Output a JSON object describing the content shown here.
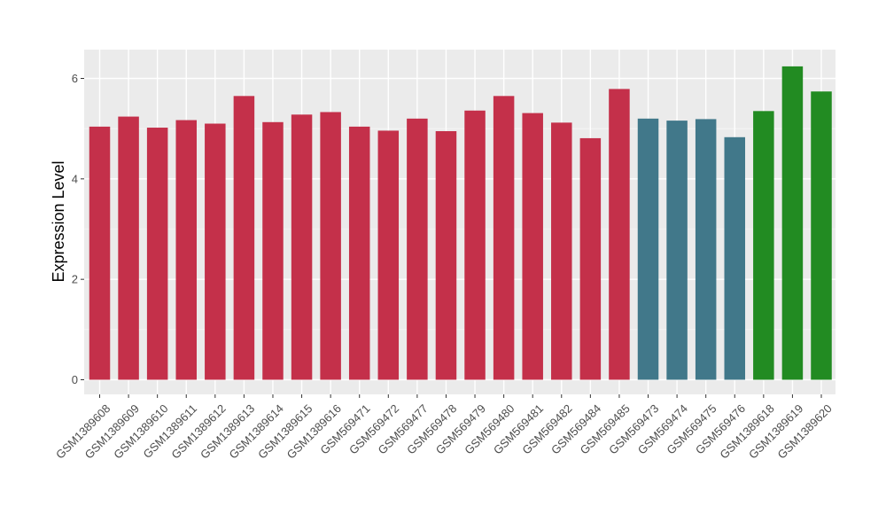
{
  "chart_data": {
    "type": "bar",
    "title": "",
    "xlabel": "",
    "ylabel": "Expression Level",
    "ylim": [
      0,
      6.5
    ],
    "yticks": [
      0,
      2,
      4,
      6
    ],
    "grid": true,
    "legend": "none",
    "colors": {
      "red": "#c4304a",
      "teal": "#41788a",
      "green": "#228b22",
      "panel": "#ebebeb",
      "grid": "#ffffff"
    },
    "categories": [
      "GSM1389608",
      "GSM1389609",
      "GSM1389610",
      "GSM1389611",
      "GSM1389612",
      "GSM1389613",
      "GSM1389614",
      "GSM1389615",
      "GSM1389616",
      "GSM569471",
      "GSM569472",
      "GSM569477",
      "GSM569478",
      "GSM569479",
      "GSM569480",
      "GSM569481",
      "GSM569482",
      "GSM569484",
      "GSM569485",
      "GSM569473",
      "GSM569474",
      "GSM569475",
      "GSM569476",
      "GSM1389618",
      "GSM1389619",
      "GSM1389620"
    ],
    "values": [
      5.04,
      5.24,
      5.02,
      5.17,
      5.1,
      5.65,
      5.13,
      5.28,
      5.33,
      5.04,
      4.96,
      5.2,
      4.95,
      5.36,
      5.65,
      5.31,
      5.12,
      4.81,
      5.79,
      5.2,
      5.16,
      5.19,
      4.83,
      5.35,
      6.24,
      5.74
    ],
    "bar_colors": [
      "#c4304a",
      "#c4304a",
      "#c4304a",
      "#c4304a",
      "#c4304a",
      "#c4304a",
      "#c4304a",
      "#c4304a",
      "#c4304a",
      "#c4304a",
      "#c4304a",
      "#c4304a",
      "#c4304a",
      "#c4304a",
      "#c4304a",
      "#c4304a",
      "#c4304a",
      "#c4304a",
      "#c4304a",
      "#41788a",
      "#41788a",
      "#41788a",
      "#41788a",
      "#228b22",
      "#228b22",
      "#228b22"
    ]
  }
}
